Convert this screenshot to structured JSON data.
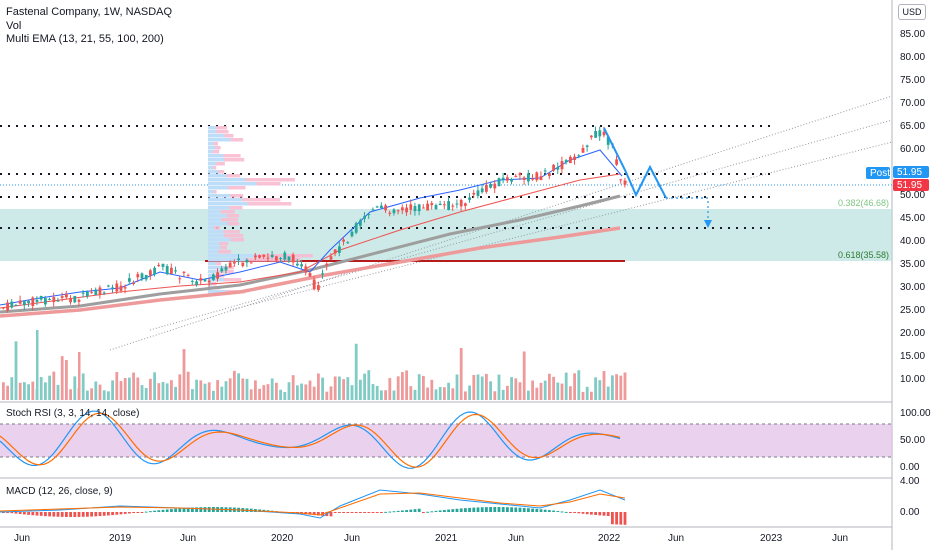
{
  "header": {
    "title": "Fastenal Company, 1W, NASDAQ",
    "vol_label": "Vol",
    "ema_label": "Multi EMA (13, 21, 55, 100, 200)",
    "currency": "USD"
  },
  "price_axis": [
    "85.00",
    "80.00",
    "75.00",
    "70.00",
    "65.00",
    "60.00",
    "55.00",
    "50.00",
    "45.00",
    "40.00",
    "35.00",
    "30.00",
    "25.00",
    "20.00",
    "15.00",
    "10.00"
  ],
  "stoch_axis": [
    "100.00",
    "50.00",
    "0.00"
  ],
  "macd_axis": [
    "4.00",
    "0.00"
  ],
  "time_axis": [
    "Jun",
    "2019",
    "Jun",
    "2020",
    "Jun",
    "2021",
    "Jun",
    "2022",
    "Jun",
    "2023",
    "Jun"
  ],
  "tags": {
    "post_label": "Post",
    "post_price": "51.95",
    "last_price": "51.95"
  },
  "fib": {
    "f382": "0.382(46.68)",
    "f618": "0.618(35.58)"
  },
  "stoch_legend": "Stoch RSI (3, 3, 14, 14, close)",
  "macd_legend": "MACD (12, 26, close, 9)",
  "colors": {
    "up": "#26a69a",
    "down": "#ef5350",
    "blue": "#2196f3",
    "tag_red": "#f23645",
    "zone": "#b2dfdb",
    "stoch_bg": "#e1bee7"
  },
  "chart_data": {
    "type": "candlestick",
    "symbol": "FAST",
    "interval": "1W",
    "ylim": [
      5,
      88
    ],
    "x": [
      "2018-06",
      "2018-09",
      "2019-01",
      "2019-06",
      "2019-09",
      "2020-01",
      "2020-03",
      "2020-06",
      "2020-09",
      "2021-01",
      "2021-04",
      "2021-06",
      "2021-09",
      "2021-12",
      "2022-01"
    ],
    "close": [
      24.5,
      26.5,
      27.5,
      32.0,
      31.5,
      36.5,
      30.5,
      41.5,
      47.0,
      48.5,
      50.5,
      54.0,
      56.5,
      63.5,
      51.95
    ],
    "horizontal_levels": [
      65.0,
      55.3,
      49.3,
      42.8,
      35.4
    ],
    "fib_levels": [
      {
        "label": "0.382",
        "value": 46.68
      },
      {
        "label": "0.618",
        "value": 35.58
      }
    ],
    "last_price": 51.95
  }
}
